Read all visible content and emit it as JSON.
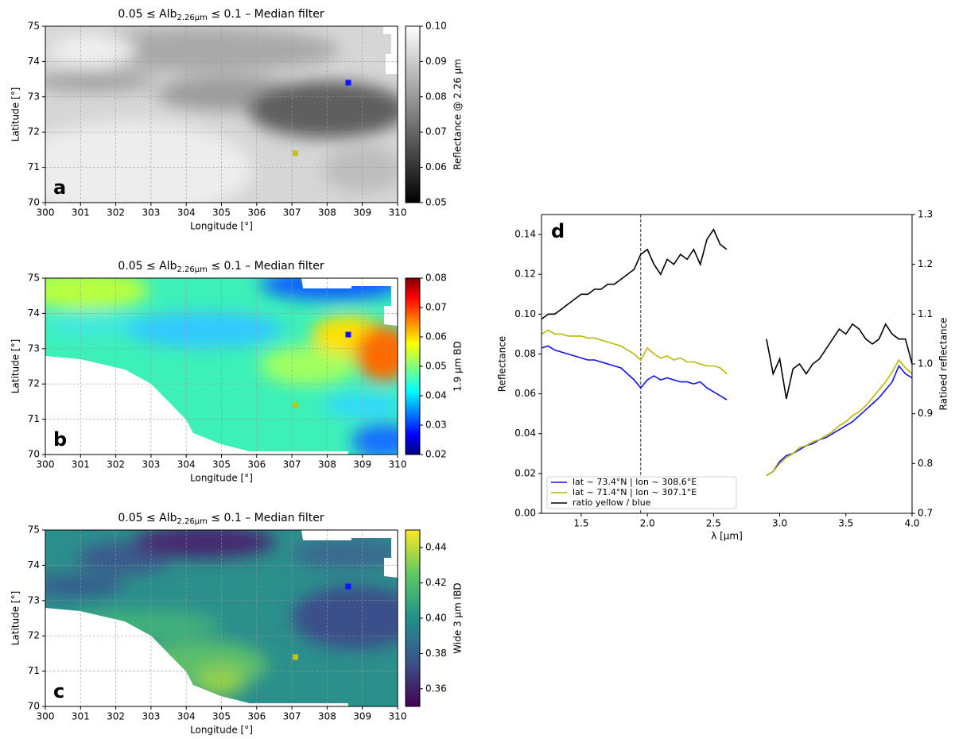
{
  "chart_data": [
    {
      "type": "heatmap",
      "title": [
        "0.05 ≤ Alb",
        "2.26µm",
        " ≤ 0.1 – Median filter"
      ],
      "panel": "a",
      "xlabel": "Longitude [°]",
      "ylabel": "Latitude [°]",
      "colorbar_label": "Reflectance @ 2.26 µm",
      "cmap": "gray",
      "xlim": [
        300,
        310
      ],
      "xticks": [
        300,
        301,
        302,
        303,
        304,
        305,
        306,
        307,
        308,
        309,
        310
      ],
      "ylim": [
        70,
        75
      ],
      "yticks": [
        70,
        71,
        72,
        73,
        74,
        75
      ],
      "grid": true,
      "clim": [
        0.05,
        0.1
      ],
      "cticks": [
        0.05,
        0.06,
        0.07,
        0.08,
        0.09,
        {
          "value": 0.1,
          "label": "0.10"
        }
      ],
      "points": [
        {
          "lon": 308.6,
          "lat": 73.4,
          "color": "#0a14ff"
        },
        {
          "lon": 307.1,
          "lat": 71.4,
          "color": "#c4c400"
        }
      ]
    },
    {
      "type": "heatmap",
      "title": [
        "0.05 ≤ Alb",
        "2.26µm",
        " ≤ 0.1 – Median filter"
      ],
      "panel": "b",
      "xlabel": "Longitude [°]",
      "ylabel": "Latitude [°]",
      "colorbar_label": "1.9 µm BD",
      "cmap": "jet",
      "xlim": [
        300,
        310
      ],
      "xticks": [
        300,
        301,
        302,
        303,
        304,
        305,
        306,
        307,
        308,
        309,
        310
      ],
      "ylim": [
        70,
        75
      ],
      "yticks": [
        70,
        71,
        72,
        73,
        74,
        75
      ],
      "grid": true,
      "clim": [
        0.02,
        0.08
      ],
      "cticks": [
        0.02,
        0.03,
        0.04,
        0.05,
        0.06,
        0.07,
        0.08
      ],
      "points": [
        {
          "lon": 308.6,
          "lat": 73.4,
          "color": "#0a14ff"
        },
        {
          "lon": 307.1,
          "lat": 71.4,
          "color": "#c4c400"
        }
      ]
    },
    {
      "type": "heatmap",
      "title": [
        "0.05 ≤ Alb",
        "2.26µm",
        " ≤ 0.1 – Median filter"
      ],
      "panel": "c",
      "xlabel": "Longitude [°]",
      "ylabel": "Latitude [°]",
      "colorbar_label": "Wide 3 µm IBD",
      "cmap": "viridis",
      "xlim": [
        300,
        310
      ],
      "xticks": [
        300,
        301,
        302,
        303,
        304,
        305,
        306,
        307,
        308,
        309,
        310
      ],
      "ylim": [
        70,
        75
      ],
      "yticks": [
        70,
        71,
        72,
        73,
        74,
        75
      ],
      "grid": true,
      "clim": [
        0.35,
        0.45
      ],
      "cticks": [
        0.36,
        0.38,
        {
          "value": 0.4,
          "label": "0.40"
        },
        0.42,
        0.44
      ],
      "points": [
        {
          "lon": 308.6,
          "lat": 73.4,
          "color": "#0a14ff"
        },
        {
          "lon": 307.1,
          "lat": 71.4,
          "color": "#c4c400"
        }
      ]
    },
    {
      "type": "line",
      "panel": "d",
      "xlabel": "λ [µm]",
      "ylabel": "Reflectance",
      "y2label": "Ratioed reflectance",
      "xlim": [
        1.2,
        4.0
      ],
      "xticks": [
        1.5,
        {
          "value": 2,
          "label": "2.0"
        },
        2.5,
        {
          "value": 3,
          "label": "3.0"
        },
        3.5,
        {
          "value": 4,
          "label": "4.0"
        }
      ],
      "ylim": [
        0,
        0.15
      ],
      "yticks": [
        {
          "value": 0,
          "label": "0.00"
        },
        0.02,
        0.04,
        0.06,
        0.08,
        {
          "value": 0.1,
          "label": "0.10"
        },
        0.12,
        0.14
      ],
      "y2lim": [
        0.7,
        1.3
      ],
      "y2ticks": [
        0.7,
        0.8,
        0.9,
        {
          "value": 1,
          "label": "1.0"
        },
        1.1,
        1.2,
        1.3
      ],
      "vline": 1.95,
      "legend": "lower left",
      "x": [
        1.2,
        1.25,
        1.3,
        1.35,
        1.4,
        1.45,
        1.5,
        1.55,
        1.6,
        1.65,
        1.7,
        1.75,
        1.8,
        1.85,
        1.9,
        1.95,
        2.0,
        2.05,
        2.1,
        2.15,
        2.2,
        2.25,
        2.3,
        2.35,
        2.4,
        2.45,
        2.5,
        2.55,
        2.6,
        2.75,
        2.9,
        2.95,
        3.0,
        3.05,
        3.1,
        3.15,
        3.2,
        3.25,
        3.3,
        3.35,
        3.4,
        3.45,
        3.5,
        3.55,
        3.6,
        3.65,
        3.7,
        3.75,
        3.8,
        3.85,
        3.9,
        3.95,
        4.0
      ],
      "series": [
        {
          "name": "lat ~ 73.4°N | lon ~ 308.6°E",
          "color": "#1010ee",
          "values": [
            0.083,
            0.084,
            0.082,
            0.081,
            0.08,
            0.079,
            0.078,
            0.077,
            0.077,
            0.076,
            0.075,
            0.074,
            0.073,
            0.07,
            0.067,
            0.063,
            0.067,
            0.069,
            0.067,
            0.068,
            0.067,
            0.066,
            0.066,
            0.065,
            0.066,
            0.063,
            0.061,
            0.059,
            0.057,
            null,
            0.019,
            0.021,
            0.026,
            0.029,
            0.03,
            0.032,
            0.034,
            0.035,
            0.037,
            0.038,
            0.04,
            0.042,
            0.044,
            0.046,
            0.049,
            0.052,
            0.055,
            0.058,
            0.062,
            0.066,
            0.074,
            0.07,
            0.068
          ]
        },
        {
          "name": "lat ~ 71.4°N | lon ~ 307.1°E",
          "color": "#b8b800",
          "values": [
            0.09,
            0.092,
            0.09,
            0.09,
            0.089,
            0.089,
            0.089,
            0.088,
            0.088,
            0.087,
            0.086,
            0.085,
            0.084,
            0.082,
            0.08,
            0.077,
            0.083,
            0.08,
            0.078,
            0.079,
            0.077,
            0.078,
            0.076,
            0.076,
            0.075,
            0.074,
            0.074,
            0.073,
            0.07,
            null,
            0.019,
            0.021,
            0.025,
            0.028,
            0.03,
            0.033,
            0.034,
            0.036,
            0.037,
            0.039,
            0.041,
            0.044,
            0.046,
            0.049,
            0.051,
            0.054,
            0.058,
            0.062,
            0.066,
            0.071,
            0.077,
            0.073,
            0.07
          ]
        },
        {
          "name": "ratio yellow / blue",
          "color": "#000000",
          "axis": "y2",
          "values": [
            1.09,
            1.1,
            1.1,
            1.11,
            1.12,
            1.13,
            1.14,
            1.14,
            1.15,
            1.15,
            1.16,
            1.16,
            1.17,
            1.18,
            1.19,
            1.22,
            1.23,
            1.2,
            1.18,
            1.21,
            1.2,
            1.22,
            1.21,
            1.23,
            1.2,
            1.25,
            1.27,
            1.24,
            1.23,
            null,
            1.05,
            0.98,
            1.01,
            0.93,
            0.99,
            1.0,
            0.98,
            1.0,
            1.01,
            1.03,
            1.05,
            1.07,
            1.06,
            1.08,
            1.07,
            1.05,
            1.04,
            1.05,
            1.08,
            1.06,
            1.05,
            1.05,
            1.0
          ]
        }
      ]
    }
  ]
}
